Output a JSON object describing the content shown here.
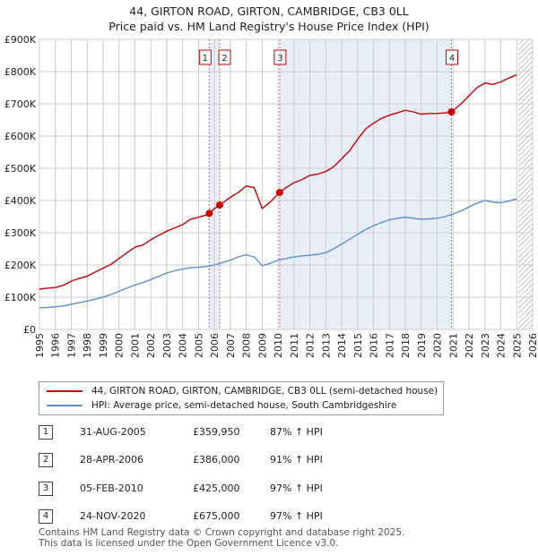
{
  "title_line1": "44, GIRTON ROAD, GIRTON, CAMBRIDGE, CB3 0LL",
  "title_line2": "Price paid vs. HM Land Registry's House Price Index (HPI)",
  "legend": [
    {
      "label": "44, GIRTON ROAD, GIRTON, CAMBRIDGE, CB3 0LL (semi-detached house)",
      "color": "#cc0000"
    },
    {
      "label": "HPI: Average price, semi-detached house, South Cambridgeshire",
      "color": "#5b8fd0"
    }
  ],
  "sales": [
    {
      "num": "1",
      "date": "31-AUG-2005",
      "price": "£359,950",
      "hpi": "87% ↑ HPI"
    },
    {
      "num": "2",
      "date": "28-APR-2006",
      "price": "£386,000",
      "hpi": "91% ↑ HPI"
    },
    {
      "num": "3",
      "date": "05-FEB-2010",
      "price": "£425,000",
      "hpi": "97% ↑ HPI"
    },
    {
      "num": "4",
      "date": "24-NOV-2020",
      "price": "£675,000",
      "hpi": "97% ↑ HPI"
    }
  ],
  "footer_line1": "Contains HM Land Registry data © Crown copyright and database right 2025.",
  "footer_line2": "This data is licensed under the Open Government Licence v3.0.",
  "chart_data": {
    "type": "line",
    "title": "Price paid vs. HM Land Registry's House Price Index (HPI)",
    "xlabel": "",
    "ylabel": "",
    "xlim": [
      1995,
      2026
    ],
    "ylim": [
      0,
      900000
    ],
    "y_ticks": [
      0,
      100000,
      200000,
      300000,
      400000,
      500000,
      600000,
      700000,
      800000,
      900000
    ],
    "y_tick_labels": [
      "£0",
      "£100K",
      "£200K",
      "£300K",
      "£400K",
      "£500K",
      "£600K",
      "£700K",
      "£800K",
      "£900K"
    ],
    "x_ticks": [
      1995,
      1996,
      1997,
      1998,
      1999,
      2000,
      2001,
      2002,
      2003,
      2004,
      2005,
      2006,
      2007,
      2008,
      2009,
      2010,
      2011,
      2012,
      2013,
      2014,
      2015,
      2016,
      2017,
      2018,
      2019,
      2020,
      2021,
      2022,
      2023,
      2024,
      2025,
      2026
    ],
    "grid": true,
    "legend_position": "bottom",
    "future_hatch_from": 2025.1,
    "series": [
      {
        "name": "44, GIRTON ROAD, GIRTON, CAMBRIDGE, CB3 0LL (semi-detached house)",
        "color": "#cc0000",
        "x": [
          1995.0,
          1995.5,
          1996.0,
          1996.5,
          1997.0,
          1997.5,
          1998.0,
          1998.5,
          1999.0,
          1999.5,
          2000.0,
          2000.5,
          2001.0,
          2001.5,
          2002.0,
          2002.5,
          2003.0,
          2003.5,
          2004.0,
          2004.5,
          2005.0,
          2005.5,
          2005.67,
          2006.0,
          2006.33,
          2006.5,
          2007.0,
          2007.5,
          2008.0,
          2008.5,
          2009.0,
          2009.5,
          2010.1,
          2010.5,
          2011.0,
          2011.5,
          2012.0,
          2012.5,
          2013.0,
          2013.5,
          2014.0,
          2014.5,
          2015.0,
          2015.5,
          2016.0,
          2016.5,
          2017.0,
          2017.5,
          2018.0,
          2018.5,
          2019.0,
          2019.5,
          2020.0,
          2020.5,
          2020.9,
          2021.5,
          2022.0,
          2022.5,
          2023.0,
          2023.5,
          2024.0,
          2024.5,
          2025.0
        ],
        "y": [
          125000,
          128000,
          130000,
          137000,
          150000,
          158000,
          165000,
          178000,
          190000,
          202000,
          220000,
          238000,
          255000,
          262000,
          278000,
          292000,
          305000,
          315000,
          325000,
          342000,
          348000,
          355000,
          359950,
          375000,
          386000,
          392000,
          410000,
          425000,
          445000,
          440000,
          375000,
          395000,
          425000,
          440000,
          455000,
          465000,
          478000,
          482000,
          490000,
          505000,
          530000,
          555000,
          590000,
          622000,
          640000,
          655000,
          665000,
          672000,
          680000,
          675000,
          668000,
          670000,
          670000,
          672000,
          675000,
          700000,
          725000,
          750000,
          765000,
          760000,
          768000,
          780000,
          790000
        ]
      },
      {
        "name": "HPI: Average price, semi-detached house, South Cambridgeshire",
        "color": "#5b8fd0",
        "x": [
          1995.0,
          1995.5,
          1996.0,
          1996.5,
          1997.0,
          1997.5,
          1998.0,
          1998.5,
          1999.0,
          1999.5,
          2000.0,
          2000.5,
          2001.0,
          2001.5,
          2002.0,
          2002.5,
          2003.0,
          2003.5,
          2004.0,
          2004.5,
          2005.0,
          2005.5,
          2006.0,
          2006.5,
          2007.0,
          2007.5,
          2008.0,
          2008.5,
          2009.0,
          2009.5,
          2010.0,
          2010.5,
          2011.0,
          2011.5,
          2012.0,
          2012.5,
          2013.0,
          2013.5,
          2014.0,
          2014.5,
          2015.0,
          2015.5,
          2016.0,
          2016.5,
          2017.0,
          2017.5,
          2018.0,
          2018.5,
          2019.0,
          2019.5,
          2020.0,
          2020.5,
          2021.0,
          2021.5,
          2022.0,
          2022.5,
          2023.0,
          2023.5,
          2024.0,
          2024.5,
          2025.0
        ],
        "y": [
          67000,
          68000,
          70000,
          73000,
          78000,
          83000,
          88000,
          94000,
          100000,
          108000,
          118000,
          128000,
          138000,
          145000,
          155000,
          165000,
          175000,
          182000,
          187000,
          192000,
          193000,
          195000,
          200000,
          207000,
          215000,
          225000,
          232000,
          225000,
          198000,
          205000,
          215000,
          220000,
          225000,
          228000,
          230000,
          233000,
          238000,
          250000,
          265000,
          280000,
          295000,
          310000,
          322000,
          332000,
          340000,
          345000,
          348000,
          345000,
          342000,
          343000,
          345000,
          350000,
          358000,
          368000,
          380000,
          392000,
          400000,
          395000,
          393000,
          398000,
          405000
        ]
      }
    ],
    "sale_markers": [
      {
        "label": "1",
        "x": 2005.67,
        "y": 359950
      },
      {
        "label": "2",
        "x": 2006.33,
        "y": 386000
      },
      {
        "label": "3",
        "x": 2010.1,
        "y": 425000
      },
      {
        "label": "4",
        "x": 2020.9,
        "y": 675000
      }
    ]
  }
}
